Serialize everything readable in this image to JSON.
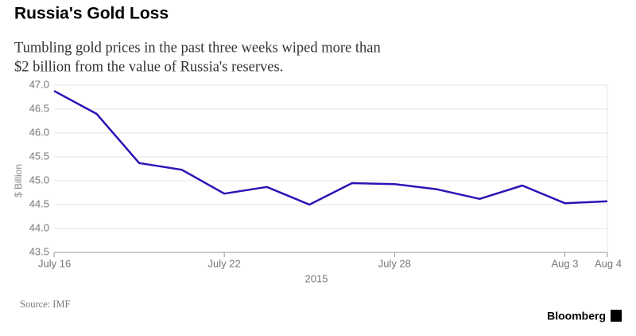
{
  "chart_data": {
    "type": "line",
    "title": "Russia's Gold Loss",
    "subtitle": [
      "Tumbling gold prices in the past three weeks wiped more than",
      "$2 billion from the value of Russia's reserves."
    ],
    "ylabel": "$ Billion",
    "xlabel": "2015",
    "source": "Source: IMF",
    "brand": "Bloomberg",
    "categories": [
      "July 16",
      null,
      null,
      null,
      "July 22",
      null,
      null,
      null,
      "July 28",
      null,
      null,
      null,
      "Aug 3",
      "Aug 4"
    ],
    "series": [
      {
        "color": "#2f12b5",
        "values": [
          46.88,
          46.4,
          45.37,
          45.23,
          44.73,
          44.87,
          44.5,
          44.95,
          44.93,
          44.82,
          44.62,
          44.9,
          44.53,
          44.57
        ]
      }
    ],
    "ylim": [
      43.5,
      47.0
    ],
    "yticks": [
      43.5,
      {
        "value": 44,
        "label": "44.0"
      },
      44.5,
      {
        "value": 45,
        "label": "45.0"
      },
      45.5,
      {
        "value": 46,
        "label": "46.0"
      },
      46.5,
      {
        "value": 47,
        "label": "47.0"
      }
    ],
    "grid": true
  }
}
